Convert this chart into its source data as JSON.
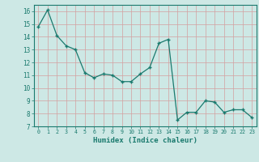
{
  "x": [
    0,
    1,
    2,
    3,
    4,
    5,
    6,
    7,
    8,
    9,
    10,
    11,
    12,
    13,
    14,
    15,
    16,
    17,
    18,
    19,
    20,
    21,
    22,
    23
  ],
  "y": [
    14.8,
    16.1,
    14.1,
    13.3,
    13.0,
    11.2,
    10.8,
    11.1,
    11.0,
    10.5,
    10.5,
    11.1,
    11.6,
    13.5,
    13.8,
    7.5,
    8.1,
    8.1,
    9.0,
    8.9,
    8.1,
    8.3,
    8.3,
    7.7
  ],
  "xlabel": "Humidex (Indice chaleur)",
  "ylim": [
    7,
    16.5
  ],
  "xlim": [
    -0.5,
    23.5
  ],
  "yticks": [
    7,
    8,
    9,
    10,
    11,
    12,
    13,
    14,
    15,
    16
  ],
  "xticks": [
    0,
    1,
    2,
    3,
    4,
    5,
    6,
    7,
    8,
    9,
    10,
    11,
    12,
    13,
    14,
    15,
    16,
    17,
    18,
    19,
    20,
    21,
    22,
    23
  ],
  "line_color": "#1a7a6e",
  "marker_color": "#1a7a6e",
  "bg_color": "#cde8e5",
  "grid_color_major": "#d4a0a0",
  "grid_color_minor": "#cde8e5",
  "axis_color": "#1a7a6e",
  "xlabel_color": "#1a7a6e",
  "tick_color": "#1a7a6e"
}
